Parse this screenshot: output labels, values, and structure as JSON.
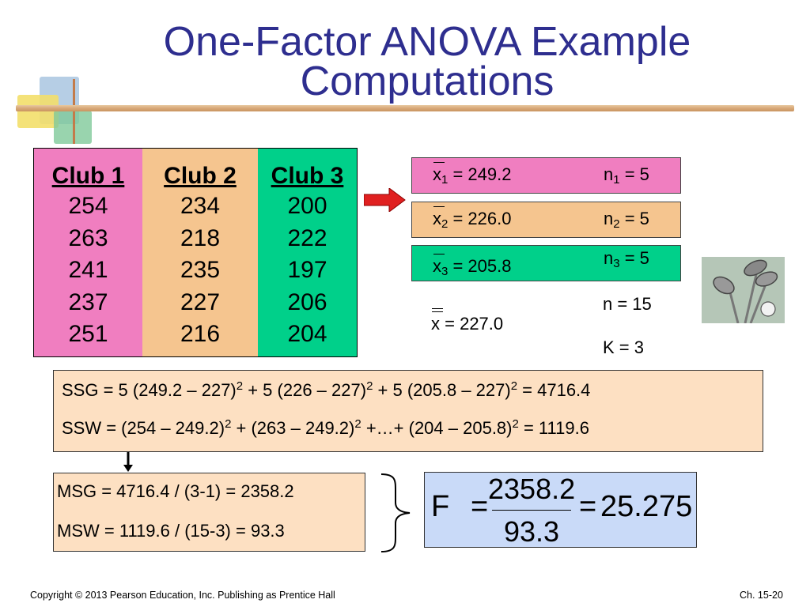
{
  "title_line1": "One-Factor ANOVA Example",
  "title_line2": "Computations",
  "clubs": [
    {
      "header": "Club 1",
      "values": [
        "254",
        "263",
        "241",
        "237",
        "251"
      ]
    },
    {
      "header": "Club 2",
      "values": [
        "234",
        "218",
        "235",
        "227",
        "216"
      ]
    },
    {
      "header": "Club 3",
      "values": [
        "200",
        "222",
        "197",
        "206",
        "204"
      ]
    }
  ],
  "means": [
    {
      "x_sym": "x",
      "x_sub": "1",
      "x_val": "= 249.2",
      "n_sym": "n",
      "n_sub": "1",
      "n_val": "= 5"
    },
    {
      "x_sym": "x",
      "x_sub": "2",
      "x_val": "= 226.0",
      "n_sym": "n",
      "n_sub": "2",
      "n_val": "= 5"
    },
    {
      "x_sym": "x",
      "x_sub": "3",
      "x_val": "= 205.8",
      "n_sym": "n",
      "n_sub": "3",
      "n_val": "= 5"
    }
  ],
  "grand_mean": {
    "sym": "x",
    "val": "= 227.0"
  },
  "n_total": "n = 15",
  "k_groups": "K = 3",
  "ssg": {
    "p1": "SSG =  5 (249.2 – 227)",
    "p2": " + 5 (226 – 227)",
    "p3": " + 5 (205.8 – 227)",
    "p4": "  = 4716.4",
    "exp": "2"
  },
  "ssw": {
    "p1": "SSW =  (254 – 249.2)",
    "p2": " + (263 – 249.2)",
    "p3": " +…+ (204 – 205.8)",
    "p4": " = 1119.6",
    "exp": "2"
  },
  "msg": "MSG = 4716.4 / (3-1) = 2358.2",
  "msw": "MSW = 1119.6 / (15-3) = 93.3",
  "f_stat": {
    "label": "F",
    "eq": "=",
    "numerator": "2358.2",
    "denominator": "93.3",
    "result": "25.275"
  },
  "footer": "Copyright © 2013 Pearson Education, Inc. Publishing as Prentice Hall",
  "page_number": "Ch. 15-20",
  "colors": {
    "title": "#2e2e8f",
    "club1": "#f07ec0",
    "club2": "#f5c58f",
    "club3": "#00d08a",
    "calc_box": "#fde0c2",
    "f_box": "#c9daf8",
    "arrow": "#e02020"
  }
}
